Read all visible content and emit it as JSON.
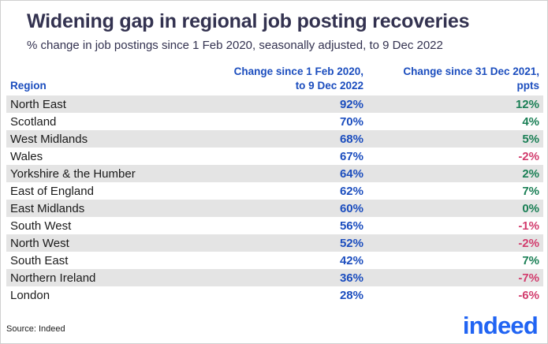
{
  "header": {
    "title": "Widening gap in regional job posting recoveries",
    "subtitle": "% change in job postings since 1 Feb 2020, seasonally adjusted, to 9 Dec 2022"
  },
  "table": {
    "columns": {
      "region": "Region",
      "change_l1": "Change since 1 Feb 2020,",
      "change_l2": "to 9 Dec 2022",
      "ppts_l1": "Change since 31 Dec 2021,",
      "ppts_l2": "ppts"
    },
    "rows": [
      {
        "region": "North East",
        "change": "92%",
        "ppts": "12%",
        "positive": true
      },
      {
        "region": "Scotland",
        "change": "70%",
        "ppts": "4%",
        "positive": true
      },
      {
        "region": "West Midlands",
        "change": "68%",
        "ppts": "5%",
        "positive": true
      },
      {
        "region": "Wales",
        "change": "67%",
        "ppts": "-2%",
        "positive": false
      },
      {
        "region": "Yorkshire & the Humber",
        "change": "64%",
        "ppts": "2%",
        "positive": true
      },
      {
        "region": "East of England",
        "change": "62%",
        "ppts": "7%",
        "positive": true
      },
      {
        "region": "East Midlands",
        "change": "60%",
        "ppts": "0%",
        "positive": true
      },
      {
        "region": "South West",
        "change": "56%",
        "ppts": "-1%",
        "positive": false
      },
      {
        "region": "North West",
        "change": "52%",
        "ppts": "-2%",
        "positive": false
      },
      {
        "region": "South East",
        "change": "42%",
        "ppts": "7%",
        "positive": true
      },
      {
        "region": "Northern Ireland",
        "change": "36%",
        "ppts": "-7%",
        "positive": false
      },
      {
        "region": "London",
        "change": "28%",
        "ppts": "-6%",
        "positive": false
      }
    ]
  },
  "footer": {
    "source": "Source: Indeed",
    "logo": "indeed"
  },
  "colors": {
    "header_blue": "#1b4dbe",
    "positive_green": "#1a7f55",
    "negative_pink": "#d23c6d",
    "logo_blue": "#2164f3",
    "row_alt": "#e4e4e4",
    "title_navy": "#333250"
  },
  "chart_data": {
    "type": "table",
    "title": "Widening gap in regional job posting recoveries",
    "subtitle": "% change in job postings since 1 Feb 2020, seasonally adjusted, to 9 Dec 2022",
    "columns": [
      "Region",
      "Change since 1 Feb 2020, to 9 Dec 2022",
      "Change since 31 Dec 2021, ppts"
    ],
    "rows": [
      [
        "North East",
        92,
        12
      ],
      [
        "Scotland",
        70,
        4
      ],
      [
        "West Midlands",
        68,
        5
      ],
      [
        "Wales",
        67,
        -2
      ],
      [
        "Yorkshire & the Humber",
        64,
        2
      ],
      [
        "East of England",
        62,
        7
      ],
      [
        "East Midlands",
        60,
        0
      ],
      [
        "South West",
        56,
        -1
      ],
      [
        "North West",
        52,
        -2
      ],
      [
        "South East",
        42,
        7
      ],
      [
        "Northern Ireland",
        36,
        -7
      ],
      [
        "London",
        28,
        -6
      ]
    ],
    "units": {
      "col2": "% change",
      "col3": "percentage points"
    },
    "source": "Source: Indeed"
  }
}
